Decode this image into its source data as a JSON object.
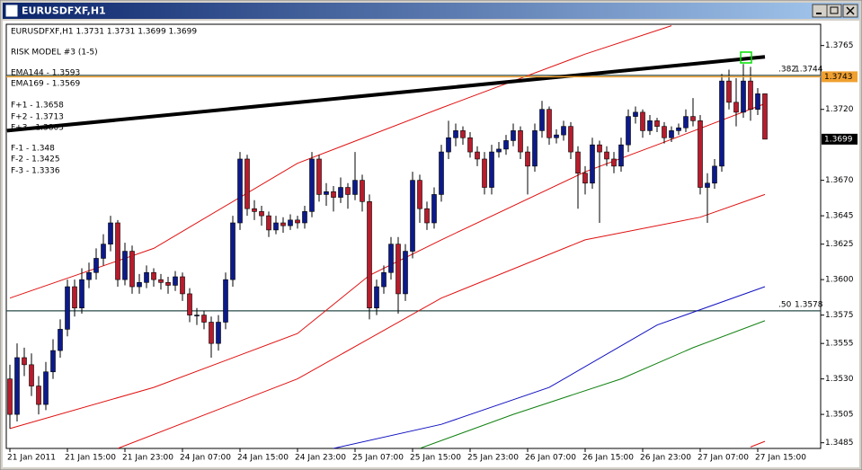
{
  "window": {
    "title": "EURUSDFXF,H1"
  },
  "chart_data": {
    "type": "candlestick",
    "header": "EURUSDFXF,H1  1.3731 1.3731 1.3699 1.3699",
    "annotations": [
      "RISK MODEL #3 (1-5)",
      "EMA144 - 1.3593",
      "EMA169 - 1.3569",
      "F+1 - 1.3658",
      "F+2 - 1.3713",
      "F+3 - 1.3803",
      "F-1 - 1.348",
      "F-2 - 1.3425",
      "F-3 - 1.3336"
    ],
    "categories": [
      "21 Jan 2011",
      null,
      null,
      null,
      null,
      null,
      null,
      null,
      "21 Jan 15:00",
      null,
      null,
      null,
      null,
      null,
      null,
      null,
      "21 Jan 23:00",
      null,
      null,
      null,
      null,
      null,
      null,
      null,
      "24 Jan 07:00",
      null,
      null,
      null,
      null,
      null,
      null,
      null,
      "24 Jan 15:00",
      null,
      null,
      null,
      null,
      null,
      null,
      null,
      "24 Jan 23:00",
      null,
      null,
      null,
      null,
      null,
      null,
      null,
      "25 Jan 07:00",
      null,
      null,
      null,
      null,
      null,
      null,
      null,
      "25 Jan 15:00",
      null,
      null,
      null,
      null,
      null,
      null,
      null,
      "25 Jan 23:00",
      null,
      null,
      null,
      null,
      null,
      null,
      null,
      "26 Jan 07:00",
      null,
      null,
      null,
      null,
      null,
      null,
      null,
      "26 Jan 15:00",
      null,
      null,
      null,
      null,
      null,
      null,
      null,
      "26 Jan 23:00",
      null,
      null,
      null,
      null,
      null,
      null,
      null,
      "27 Jan 07:00",
      null,
      null,
      null,
      null,
      null,
      null,
      null,
      "27 Jan 15:00",
      null
    ],
    "ohlc": [
      [
        1.353,
        1.354,
        1.3495,
        1.3505
      ],
      [
        1.3505,
        1.3555,
        1.35,
        1.3545
      ],
      [
        1.3545,
        1.3552,
        1.3532,
        1.354
      ],
      [
        1.354,
        1.3548,
        1.3518,
        1.3525
      ],
      [
        1.3525,
        1.3532,
        1.3505,
        1.3512
      ],
      [
        1.3512,
        1.3542,
        1.3508,
        1.3535
      ],
      [
        1.3535,
        1.3558,
        1.353,
        1.355
      ],
      [
        1.355,
        1.3572,
        1.3545,
        1.3565
      ],
      [
        1.3565,
        1.36,
        1.356,
        1.3595
      ],
      [
        1.3595,
        1.36,
        1.3574,
        1.358
      ],
      [
        1.358,
        1.3608,
        1.3576,
        1.36
      ],
      [
        1.36,
        1.3612,
        1.3594,
        1.3605
      ],
      [
        1.3605,
        1.3622,
        1.36,
        1.3615
      ],
      [
        1.3615,
        1.3632,
        1.361,
        1.3625
      ],
      [
        1.3625,
        1.3645,
        1.362,
        1.364
      ],
      [
        1.364,
        1.3642,
        1.3595,
        1.36
      ],
      [
        1.36,
        1.3626,
        1.3596,
        1.362
      ],
      [
        1.362,
        1.3624,
        1.359,
        1.3595
      ],
      [
        1.3595,
        1.3604,
        1.359,
        1.3598
      ],
      [
        1.3598,
        1.361,
        1.3594,
        1.3605
      ],
      [
        1.3605,
        1.3608,
        1.3595,
        1.36
      ],
      [
        1.36,
        1.3604,
        1.3593,
        1.3598
      ],
      [
        1.3598,
        1.3602,
        1.359,
        1.3596
      ],
      [
        1.3596,
        1.3606,
        1.3592,
        1.3602
      ],
      [
        1.3602,
        1.3605,
        1.3585,
        1.359
      ],
      [
        1.359,
        1.3594,
        1.357,
        1.3575
      ],
      [
        1.3575,
        1.358,
        1.3568,
        1.3575
      ],
      [
        1.3575,
        1.3578,
        1.3565,
        1.357
      ],
      [
        1.357,
        1.3574,
        1.3545,
        1.3555
      ],
      [
        1.3555,
        1.3575,
        1.355,
        1.357
      ],
      [
        1.357,
        1.3605,
        1.3565,
        1.36
      ],
      [
        1.36,
        1.3645,
        1.3595,
        1.364
      ],
      [
        1.364,
        1.369,
        1.3635,
        1.3685
      ],
      [
        1.3685,
        1.3688,
        1.3645,
        1.365
      ],
      [
        1.365,
        1.3656,
        1.3642,
        1.3648
      ],
      [
        1.3648,
        1.3652,
        1.3638,
        1.3645
      ],
      [
        1.3645,
        1.3648,
        1.363,
        1.3635
      ],
      [
        1.3635,
        1.3645,
        1.3632,
        1.364
      ],
      [
        1.364,
        1.3644,
        1.3633,
        1.3638
      ],
      [
        1.3638,
        1.3646,
        1.3635,
        1.3642
      ],
      [
        1.3642,
        1.3645,
        1.3636,
        1.364
      ],
      [
        1.364,
        1.3652,
        1.3636,
        1.3648
      ],
      [
        1.3648,
        1.369,
        1.3644,
        1.3685
      ],
      [
        1.3685,
        1.3688,
        1.3655,
        1.366
      ],
      [
        1.366,
        1.3668,
        1.3652,
        1.3662
      ],
      [
        1.3662,
        1.3666,
        1.3648,
        1.3658
      ],
      [
        1.3658,
        1.3672,
        1.3654,
        1.3665
      ],
      [
        1.3665,
        1.3668,
        1.365,
        1.366
      ],
      [
        1.366,
        1.369,
        1.3656,
        1.367
      ],
      [
        1.367,
        1.3674,
        1.3648,
        1.3655
      ],
      [
        1.3655,
        1.366,
        1.3572,
        1.358
      ],
      [
        1.358,
        1.36,
        1.3575,
        1.3595
      ],
      [
        1.3595,
        1.361,
        1.359,
        1.3605
      ],
      [
        1.3605,
        1.363,
        1.36,
        1.3625
      ],
      [
        1.3625,
        1.363,
        1.3576,
        1.359
      ],
      [
        1.359,
        1.3625,
        1.3585,
        1.362
      ],
      [
        1.362,
        1.3676,
        1.3615,
        1.367
      ],
      [
        1.367,
        1.3674,
        1.364,
        1.365
      ],
      [
        1.365,
        1.3655,
        1.3635,
        1.364
      ],
      [
        1.364,
        1.3665,
        1.3636,
        1.366
      ],
      [
        1.366,
        1.3695,
        1.3655,
        1.369
      ],
      [
        1.369,
        1.3712,
        1.3685,
        1.37
      ],
      [
        1.37,
        1.371,
        1.3694,
        1.3705
      ],
      [
        1.3705,
        1.3708,
        1.3695,
        1.37
      ],
      [
        1.37,
        1.3704,
        1.3686,
        1.369
      ],
      [
        1.369,
        1.3694,
        1.368,
        1.3685
      ],
      [
        1.3685,
        1.369,
        1.366,
        1.3665
      ],
      [
        1.3665,
        1.3695,
        1.366,
        1.369
      ],
      [
        1.369,
        1.3697,
        1.3686,
        1.3692
      ],
      [
        1.3692,
        1.3702,
        1.3688,
        1.3698
      ],
      [
        1.3698,
        1.371,
        1.3694,
        1.3705
      ],
      [
        1.3705,
        1.3708,
        1.3685,
        1.369
      ],
      [
        1.369,
        1.3694,
        1.366,
        1.368
      ],
      [
        1.368,
        1.371,
        1.3676,
        1.3705
      ],
      [
        1.3705,
        1.3726,
        1.37,
        1.372
      ],
      [
        1.372,
        1.3722,
        1.3695,
        1.37
      ],
      [
        1.37,
        1.3706,
        1.3696,
        1.3702
      ],
      [
        1.3702,
        1.3712,
        1.3698,
        1.3708
      ],
      [
        1.3708,
        1.3711,
        1.3685,
        1.369
      ],
      [
        1.369,
        1.3694,
        1.365,
        1.3675
      ],
      [
        1.3675,
        1.368,
        1.366,
        1.3668
      ],
      [
        1.3668,
        1.37,
        1.3664,
        1.3695
      ],
      [
        1.3695,
        1.3698,
        1.364,
        1.369
      ],
      [
        1.369,
        1.3694,
        1.368,
        1.3685
      ],
      [
        1.3685,
        1.369,
        1.3675,
        1.368
      ],
      [
        1.368,
        1.37,
        1.3676,
        1.3695
      ],
      [
        1.3695,
        1.372,
        1.369,
        1.3715
      ],
      [
        1.3715,
        1.3722,
        1.371,
        1.3718
      ],
      [
        1.3718,
        1.372,
        1.37,
        1.3705
      ],
      [
        1.3705,
        1.3716,
        1.3702,
        1.3712
      ],
      [
        1.3712,
        1.3714,
        1.3704,
        1.3708
      ],
      [
        1.3708,
        1.3711,
        1.3696,
        1.37
      ],
      [
        1.37,
        1.3708,
        1.3697,
        1.3705
      ],
      [
        1.3705,
        1.371,
        1.3702,
        1.3707
      ],
      [
        1.3707,
        1.372,
        1.3704,
        1.3715
      ],
      [
        1.3715,
        1.3728,
        1.3708,
        1.3712
      ],
      [
        1.3712,
        1.3716,
        1.366,
        1.3665
      ],
      [
        1.3665,
        1.3675,
        1.364,
        1.3668
      ],
      [
        1.3668,
        1.3685,
        1.3664,
        1.368
      ],
      [
        1.368,
        1.3745,
        1.3676,
        1.374
      ],
      [
        1.374,
        1.3748,
        1.372,
        1.3725
      ],
      [
        1.3725,
        1.3742,
        1.3708,
        1.3718
      ],
      [
        1.3718,
        1.3752,
        1.3714,
        1.374
      ],
      [
        1.374,
        1.375,
        1.3712,
        1.372
      ],
      [
        1.372,
        1.3735,
        1.3716,
        1.3731
      ],
      [
        1.3731,
        1.3731,
        1.3699,
        1.3699
      ]
    ],
    "up_color": "#0c1a8c",
    "down_color": "#b81c2c",
    "lines": [
      {
        "color": "#e01010",
        "width": 1,
        "x": [
          0,
          20,
          40,
          60,
          80,
          92
        ],
        "values": [
          1.3587,
          1.3622,
          1.3682,
          1.3721,
          1.3759,
          1.3779
        ]
      },
      {
        "color": "#e01010",
        "width": 1,
        "x": [
          0,
          20,
          40,
          50,
          60,
          80,
          90,
          105
        ],
        "values": [
          1.3495,
          1.3524,
          1.3562,
          1.3603,
          1.3628,
          1.3676,
          1.3695,
          1.3724
        ]
      },
      {
        "color": "#e01010",
        "width": 1,
        "x": [
          15,
          40,
          60,
          80,
          96,
          105
        ],
        "values": [
          1.3481,
          1.353,
          1.3587,
          1.3628,
          1.3644,
          1.366
        ]
      },
      {
        "color": "#e01010",
        "width": 1,
        "x": [
          103,
          105
        ],
        "values": [
          1.3482,
          1.3486
        ]
      },
      {
        "color": "#1010c0",
        "width": 1,
        "x": [
          45,
          60,
          75,
          90,
          105
        ],
        "values": [
          1.3481,
          1.3498,
          1.3524,
          1.3568,
          1.3595
        ]
      },
      {
        "color": "#108010",
        "width": 1,
        "x": [
          57,
          70,
          85,
          95,
          105
        ],
        "values": [
          1.3481,
          1.3505,
          1.353,
          1.3552,
          1.3571
        ]
      },
      {
        "color": "#000000",
        "width": 4,
        "x": [
          -0.4,
          105
        ],
        "values": [
          1.3705,
          1.3757
        ]
      }
    ],
    "levels": [
      {
        "label": ".382",
        "value": 1.3744,
        "color": "#2a4a4a"
      },
      {
        "label": ".50",
        "value": 1.3578,
        "color": "#2a4a4a"
      }
    ],
    "price_markers": [
      {
        "value": 1.3743,
        "color": "#f0a030",
        "line": true
      },
      {
        "value": 1.3699,
        "color": "#000000",
        "line": false
      }
    ],
    "ylim": [
      1.3481,
      1.378
    ],
    "yticks": [
      {
        "value": 1.3765,
        "label": "1.3765"
      },
      {
        "value": 1.372,
        "label": "1.3720"
      },
      {
        "value": 1.367,
        "label": "1.3670"
      },
      {
        "value": 1.3645,
        "label": "1.3645"
      },
      {
        "value": 1.3625,
        "label": "1.3625"
      },
      {
        "value": 1.36,
        "label": "1.3600"
      },
      {
        "value": 1.3575,
        "label": "1.3575"
      },
      {
        "value": 1.3555,
        "label": "1.3555"
      },
      {
        "value": 1.353,
        "label": "1.3530"
      },
      {
        "value": 1.3505,
        "label": "1.3505"
      },
      {
        "value": 1.3485,
        "label": "1.3485"
      }
    ],
    "grid": false
  }
}
